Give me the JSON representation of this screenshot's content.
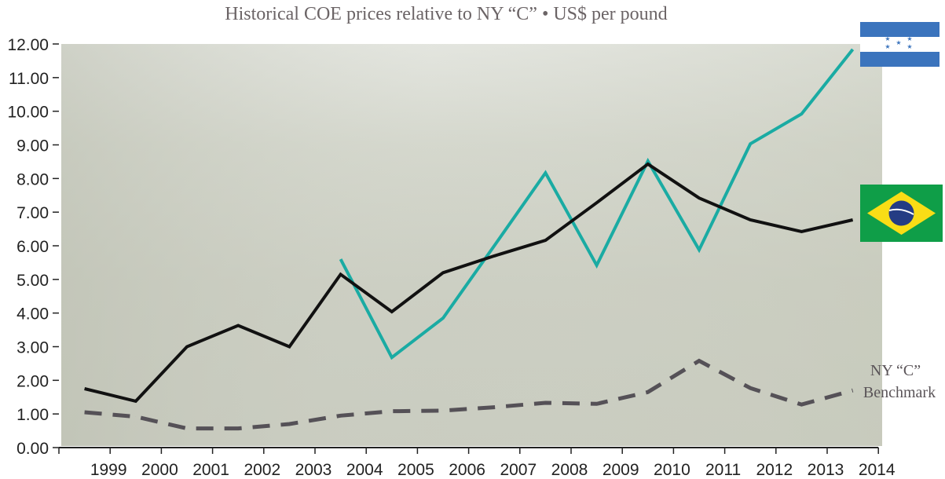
{
  "chart_data": {
    "type": "line",
    "title": "Historical COE prices relative to NY “C” • US$ per pound",
    "xlabel": "",
    "ylabel": "",
    "ylim": [
      0,
      12
    ],
    "grid": false,
    "x": [
      1999,
      2000,
      2001,
      2002,
      2003,
      2004,
      2005,
      2006,
      2007,
      2008,
      2009,
      2010,
      2011,
      2012,
      2013,
      2014
    ],
    "x_tick_labels": [
      "1999",
      "2000",
      "2001",
      "2002",
      "2003",
      "2004",
      "2005",
      "2006",
      "2007",
      "2008",
      "2009",
      "2010",
      "2011",
      "2012",
      "2013",
      "2014"
    ],
    "y_tick_labels": [
      "0.00",
      "1.00",
      "2.00",
      "3.00",
      "4.00",
      "5.00",
      "6.00",
      "7.00",
      "8.00",
      "9.00",
      "10.00",
      "11.00",
      "12.00"
    ],
    "series": [
      {
        "flag": "brazil-flag-icon",
        "color": "#111111",
        "style": "solid",
        "values": [
          1.75,
          1.38,
          3.0,
          3.63,
          3.0,
          5.15,
          4.04,
          5.2,
          5.7,
          6.16,
          7.28,
          8.43,
          7.42,
          6.77,
          6.42,
          6.77
        ]
      },
      {
        "flag": "honduras-flag-icon",
        "color": "#1aaba3",
        "style": "solid",
        "values": [
          null,
          null,
          null,
          null,
          null,
          5.6,
          2.68,
          3.85,
          6.0,
          8.17,
          5.42,
          8.52,
          5.88,
          9.03,
          9.92,
          11.84
        ]
      },
      {
        "label_line1": "NY “C”",
        "label_line2": "Benchmark",
        "color": "#555157",
        "style": "dashed",
        "values": [
          1.05,
          0.92,
          0.57,
          0.57,
          0.7,
          0.95,
          1.08,
          1.1,
          1.2,
          1.33,
          1.3,
          1.65,
          2.58,
          1.77,
          1.28,
          1.7
        ]
      }
    ]
  }
}
